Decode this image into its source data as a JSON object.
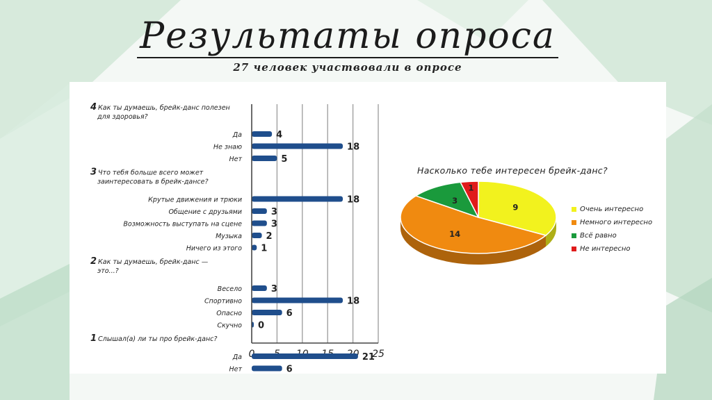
{
  "title": "Результаты опроса",
  "subtitle": "27 человек участвовали в опросе",
  "chart_data": [
    {
      "type": "bar",
      "orientation": "horizontal",
      "xlim": [
        0,
        25
      ],
      "xticks": [
        0,
        5,
        10,
        15,
        20,
        25
      ],
      "grid": true,
      "groups": [
        {
          "question": "4 Как ты думаешь, брейк-данс полезен для здоровья?",
          "categories": [
            "Да",
            "Не знаю",
            "Нет"
          ],
          "values": [
            4,
            18,
            5
          ]
        },
        {
          "question": "3 Что тебя больше всего может заинтересовать в брейк-дансе?",
          "categories": [
            "Крутые движения и трюки",
            "Общение с друзьями",
            "Возможность выступать на сцене",
            "Музыка",
            "Ничего из этого"
          ],
          "values": [
            18,
            3,
            3,
            2,
            1
          ]
        },
        {
          "question": "2 Как ты думаешь, брейк-данс — это...?",
          "categories": [
            "Весело",
            "Спортивно",
            "Опасно",
            "Скучно"
          ],
          "values": [
            3,
            18,
            6,
            0
          ]
        },
        {
          "question": "1 Слышал(а) ли ты про брейк-данс?",
          "categories": [
            "Да",
            "Нет"
          ],
          "values": [
            21,
            6
          ]
        }
      ],
      "bar_color": "#1f4e8c"
    },
    {
      "type": "pie",
      "title": "Насколько тебе интересен брейк-данс?",
      "slices": [
        {
          "label": "Очень интересно",
          "value": 9,
          "color": "#f2f21e"
        },
        {
          "label": "Немного интересно",
          "value": 14,
          "color": "#f08a10"
        },
        {
          "label": "Всё равно",
          "value": 3,
          "color": "#1a9a3c"
        },
        {
          "label": "Не интересно",
          "value": 1,
          "color": "#e01b1b"
        }
      ],
      "legend_position": "right"
    }
  ]
}
